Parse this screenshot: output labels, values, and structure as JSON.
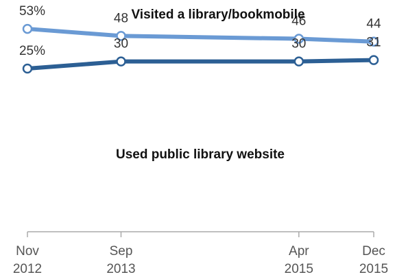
{
  "chart_data": {
    "type": "line",
    "x": [
      "2012-11",
      "2013-09",
      "2015-04",
      "2015-12"
    ],
    "x_tick_labels": [
      {
        "month": "Nov",
        "year": "2012"
      },
      {
        "month": "Sep",
        "year": "2013"
      },
      {
        "month": "Apr",
        "year": "2015"
      },
      {
        "month": "Dec",
        "year": "2015"
      }
    ],
    "series": [
      {
        "name": "Visited a library/bookmobile",
        "values": [
          53,
          48,
          46,
          44
        ],
        "labels": [
          "53%",
          "48",
          "46",
          "44"
        ],
        "color": "#6a9ad4"
      },
      {
        "name": "Used public library website",
        "values": [
          25,
          30,
          30,
          31
        ],
        "labels": [
          "25%",
          "",
          "30",
          "31"
        ],
        "color": "#2c5f94"
      }
    ],
    "ylim": [
      0,
      60
    ],
    "grid": false,
    "axis_color": "#aaaaaa"
  }
}
